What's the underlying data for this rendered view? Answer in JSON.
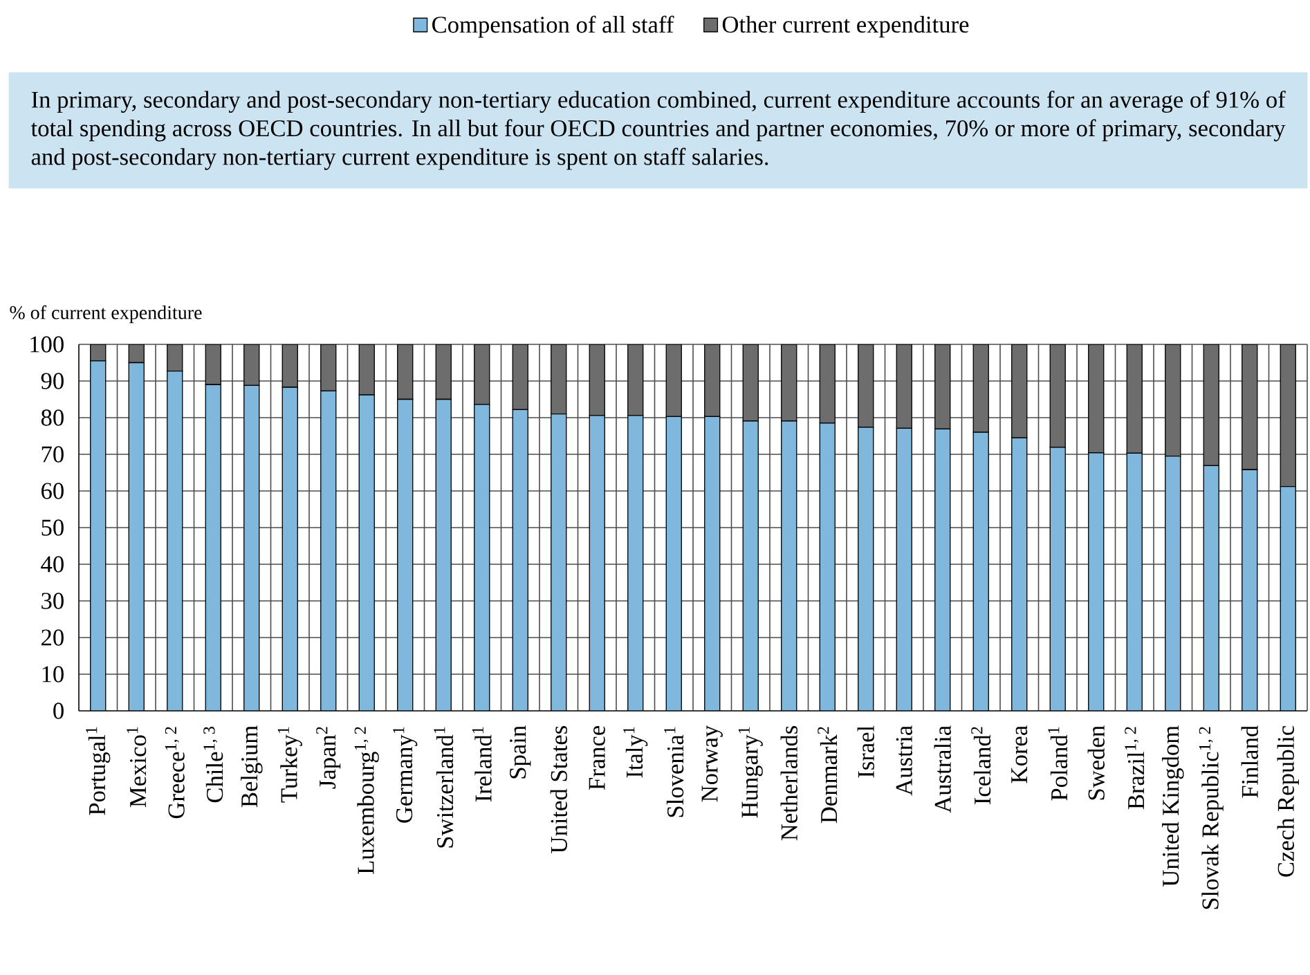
{
  "chart_data": {
    "type": "bar",
    "stacked": true,
    "ylabel": "% of current expenditure",
    "annotations": [
      "In primary, secondary and post-secondary non-tertiary education combined, current expenditure accounts for an average of 91% of total spending across OECD countries. In all but four OECD countries and partner economies, 70% or more of primary, secondary and post-secondary non-tertiary current expenditure is spent on staff salaries."
    ],
    "categories": [
      "Portugal$^{1}$",
      "Mexico$^{1}$",
      "Greece$^{1, 2}$",
      "Chile$^{1, 3}$",
      "Belgium",
      "Turkey$^{1}$",
      "Japan$^{2}$",
      "Luxembourg$^{1, 2}$",
      "Germany$^{1}$",
      "Switzerland$^{1}$",
      "Ireland$^{1}$",
      "Spain",
      "United States",
      "France",
      "Italy$^{1}$",
      "Slovenia$^{1}$",
      "Norway",
      "Hungary$^{1}$",
      "Netherlands",
      "Denmark$^{2}$",
      "Israel",
      "Austria",
      "Australia",
      "Iceland$^{2}$",
      "Korea",
      "Poland$^{1}$",
      "Sweden",
      "Brazil$^{1, 2}$",
      "United Kingdom",
      "Slovak Republic$^{1, 2}$",
      "Finland",
      "Czech Republic"
    ],
    "series": [
      {
        "name": "Compensation of all staff",
        "color": "#7fb8dc",
        "values": [
          95.5,
          95,
          92.7,
          89,
          88.8,
          88.3,
          87.3,
          86.2,
          85,
          85,
          83.6,
          82.2,
          81,
          80.6,
          80.6,
          80.3,
          80.3,
          79.1,
          79.1,
          78.5,
          77.4,
          77.1,
          76.9,
          76,
          74.5,
          71.9,
          70.4,
          70.3,
          69.5,
          66.9,
          65.8,
          61.2
        ]
      },
      {
        "name": "Other current expenditure",
        "color": "#6d6d6e",
        "values": [
          4.5,
          5,
          7.3,
          11,
          11.2,
          11.7,
          12.7,
          13.8,
          15,
          15,
          16.4,
          17.8,
          19,
          19.4,
          19.4,
          19.7,
          19.7,
          20.9,
          20.9,
          21.5,
          22.6,
          22.9,
          23.1,
          24,
          25.5,
          28.1,
          29.6,
          29.7,
          30.5,
          33.1,
          34.2,
          38.8
        ]
      }
    ],
    "ylim": [
      0,
      100
    ],
    "yticks": [
      0,
      10,
      20,
      30,
      40,
      50,
      60,
      70,
      80,
      90,
      100
    ],
    "grid": true,
    "legend": "top"
  }
}
